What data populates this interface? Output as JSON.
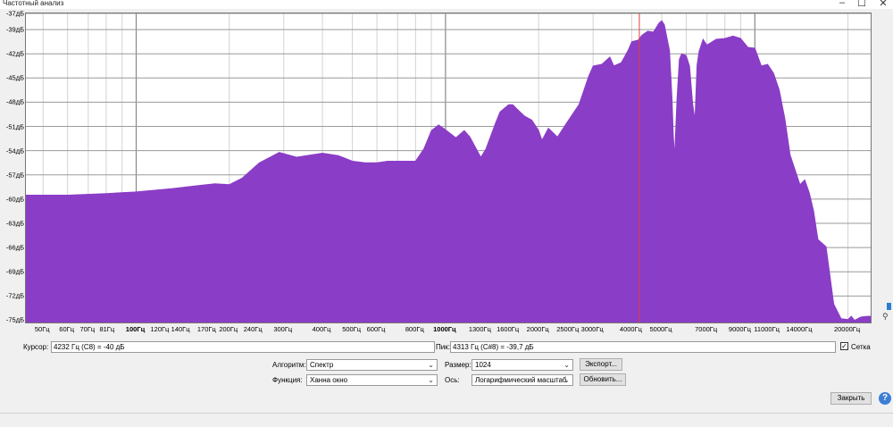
{
  "window": {
    "title": "Частотный анализ",
    "minimize": "–",
    "maximize": "☐",
    "close": "✕"
  },
  "chart_data": {
    "type": "area",
    "xscale": "log",
    "xlim": [
      44,
      24000
    ],
    "ylim": [
      -75.5,
      -37
    ],
    "color": "#8a3dc6",
    "grid": true,
    "y_ticks": [
      "-37дБ",
      "-39дБ",
      "-42дБ",
      "-45дБ",
      "-48дБ",
      "-51дБ",
      "-54дБ",
      "-57дБ",
      "-60дБ",
      "-63дБ",
      "-66дБ",
      "-69дБ",
      "-72дБ",
      "-75дБ"
    ],
    "y_tick_values": [
      -37,
      -39,
      -42,
      -45,
      -48,
      -51,
      -54,
      -57,
      -60,
      -63,
      -66,
      -69,
      -72,
      -75
    ],
    "x_ticks": [
      {
        "f": 50,
        "label": "50Гц"
      },
      {
        "f": 60,
        "label": "60Гц"
      },
      {
        "f": 70,
        "label": "70Гц"
      },
      {
        "f": 81,
        "label": "81Гц"
      },
      {
        "f": 100,
        "label": "100Гц",
        "major": true
      },
      {
        "f": 120,
        "label": "120Гц"
      },
      {
        "f": 140,
        "label": "140Гц"
      },
      {
        "f": 170,
        "label": "170Гц"
      },
      {
        "f": 200,
        "label": "200Гц"
      },
      {
        "f": 240,
        "label": "240Гц"
      },
      {
        "f": 300,
        "label": "300Гц"
      },
      {
        "f": 400,
        "label": "400Гц"
      },
      {
        "f": 500,
        "label": "500Гц"
      },
      {
        "f": 600,
        "label": "600Гц"
      },
      {
        "f": 800,
        "label": "800Гц"
      },
      {
        "f": 1000,
        "label": "1000Гц",
        "major": true
      },
      {
        "f": 1300,
        "label": "1300Гц"
      },
      {
        "f": 1600,
        "label": "1600Гц"
      },
      {
        "f": 2000,
        "label": "2000Гц"
      },
      {
        "f": 2500,
        "label": "2500Гц"
      },
      {
        "f": 3000,
        "label": "3000Гц"
      },
      {
        "f": 4000,
        "label": "4000Гц"
      },
      {
        "f": 5000,
        "label": "5000Гц"
      },
      {
        "f": 7000,
        "label": "7000Гц"
      },
      {
        "f": 9000,
        "label": "9000Гц"
      },
      {
        "f": 11000,
        "label": "11000Гц"
      },
      {
        "f": 14000,
        "label": "14000Гц"
      },
      {
        "f": 20000,
        "label": "20000Гц"
      }
    ],
    "x": [
      44,
      60,
      80,
      100,
      130,
      160,
      180,
      200,
      220,
      250,
      290,
      330,
      400,
      450,
      500,
      550,
      600,
      650,
      700,
      750,
      800,
      850,
      900,
      950,
      1000,
      1080,
      1150,
      1200,
      1300,
      1350,
      1450,
      1500,
      1600,
      1650,
      1700,
      1800,
      1900,
      2000,
      2050,
      2150,
      2300,
      2500,
      2700,
      2900,
      3000,
      3200,
      3400,
      3500,
      3700,
      3800,
      3900,
      4000,
      4200,
      4313,
      4500,
      4700,
      4900,
      5000,
      5100,
      5300,
      5400,
      5450,
      5500,
      5600,
      5700,
      5800,
      6000,
      6150,
      6300,
      6400,
      6500,
      6600,
      6800,
      7000,
      7500,
      8000,
      8500,
      9000,
      9500,
      10000,
      10500,
      11000,
      11500,
      12000,
      12500,
      13000,
      14000,
      14500,
      15000,
      15500,
      16000,
      17000,
      17500,
      18000,
      19000,
      20000,
      20500,
      21000,
      22000,
      23000,
      24000
    ],
    "y": [
      -59.5,
      -59.5,
      -59.3,
      -59.1,
      -58.7,
      -58.3,
      -58.1,
      -58.2,
      -57.4,
      -55.5,
      -54.2,
      -54.8,
      -54.3,
      -54.6,
      -55.3,
      -55.5,
      -55.5,
      -55.3,
      -55.3,
      -55.3,
      -55.3,
      -53.8,
      -51.5,
      -50.8,
      -51.4,
      -52.4,
      -51.5,
      -52.3,
      -54.8,
      -53.8,
      -50.6,
      -49.2,
      -48.3,
      -48.3,
      -48.8,
      -49.7,
      -50.2,
      -51.5,
      -52.7,
      -51.2,
      -52.3,
      -50.2,
      -48.3,
      -44.8,
      -43.5,
      -43.3,
      -42.4,
      -43.5,
      -43.1,
      -42.3,
      -41.5,
      -40.5,
      -40.3,
      -39.7,
      -39.2,
      -39.3,
      -38.2,
      -37.9,
      -38.4,
      -41.6,
      -47.5,
      -52,
      -54.6,
      -47.5,
      -42.7,
      -42,
      -42.2,
      -43.5,
      -48.3,
      -50.1,
      -43.4,
      -41.7,
      -40.2,
      -40.9,
      -40.2,
      -40.1,
      -39.8,
      -40.1,
      -41.2,
      -41.3,
      -43.5,
      -43.3,
      -44.4,
      -46.5,
      -50,
      -54.5,
      -58.2,
      -57.6,
      -59.2,
      -61.5,
      -65,
      -65.9,
      -69.5,
      -73,
      -74.8,
      -74.9,
      -74.5,
      -75,
      -74.6,
      -74.5,
      -74.5
    ],
    "cursor_freq": 4232,
    "peak_freq": 4313
  },
  "controls": {
    "cursor_label": "Курсор:",
    "cursor_value": "4232 Гц (C8) = -40 дБ",
    "peak_label": "Пик:",
    "peak_value": "4313 Гц (C#8) = -39,7 дБ",
    "grid_label": "Сетка",
    "grid_checked": "✓",
    "algorithm_label": "Алгоритм:",
    "algorithm_value": "Спектр",
    "function_label": "Функция:",
    "function_value": "Ханна окно",
    "size_label": "Размер:",
    "size_value": "1024",
    "axis_label": "Ось:",
    "axis_value": "Логарифмический масштаб",
    "export_button": "Экспорт...",
    "refresh_button": "Обновить...",
    "close_button": "Закрыть",
    "help_button": "?"
  }
}
